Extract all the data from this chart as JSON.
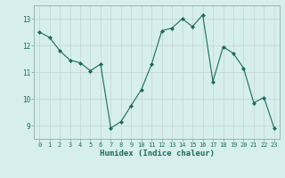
{
  "x": [
    0,
    1,
    2,
    3,
    4,
    5,
    6,
    7,
    8,
    9,
    10,
    11,
    12,
    13,
    14,
    15,
    16,
    17,
    18,
    19,
    20,
    21,
    22,
    23
  ],
  "y": [
    12.5,
    12.3,
    11.8,
    11.45,
    11.35,
    11.05,
    11.3,
    8.9,
    9.15,
    9.75,
    10.35,
    11.3,
    12.55,
    12.65,
    13.0,
    12.7,
    13.15,
    10.65,
    11.95,
    11.7,
    11.15,
    9.85,
    10.05,
    8.9
  ],
  "xlabel": "Humidex (Indice chaleur)",
  "ylabel": "",
  "xlim": [
    -0.5,
    23.5
  ],
  "ylim": [
    8.5,
    13.5
  ],
  "yticks": [
    9,
    10,
    11,
    12,
    13
  ],
  "xticks": [
    0,
    1,
    2,
    3,
    4,
    5,
    6,
    7,
    8,
    9,
    10,
    11,
    12,
    13,
    14,
    15,
    16,
    17,
    18,
    19,
    20,
    21,
    22,
    23
  ],
  "line_color": "#1a6b5a",
  "marker": "D",
  "marker_size": 2.0,
  "bg_color": "#d6efed",
  "grid_color": "#c8d8d5",
  "label_color": "#1a6b5a",
  "tick_color": "#1a6b5a",
  "spine_color": "#8aada8"
}
